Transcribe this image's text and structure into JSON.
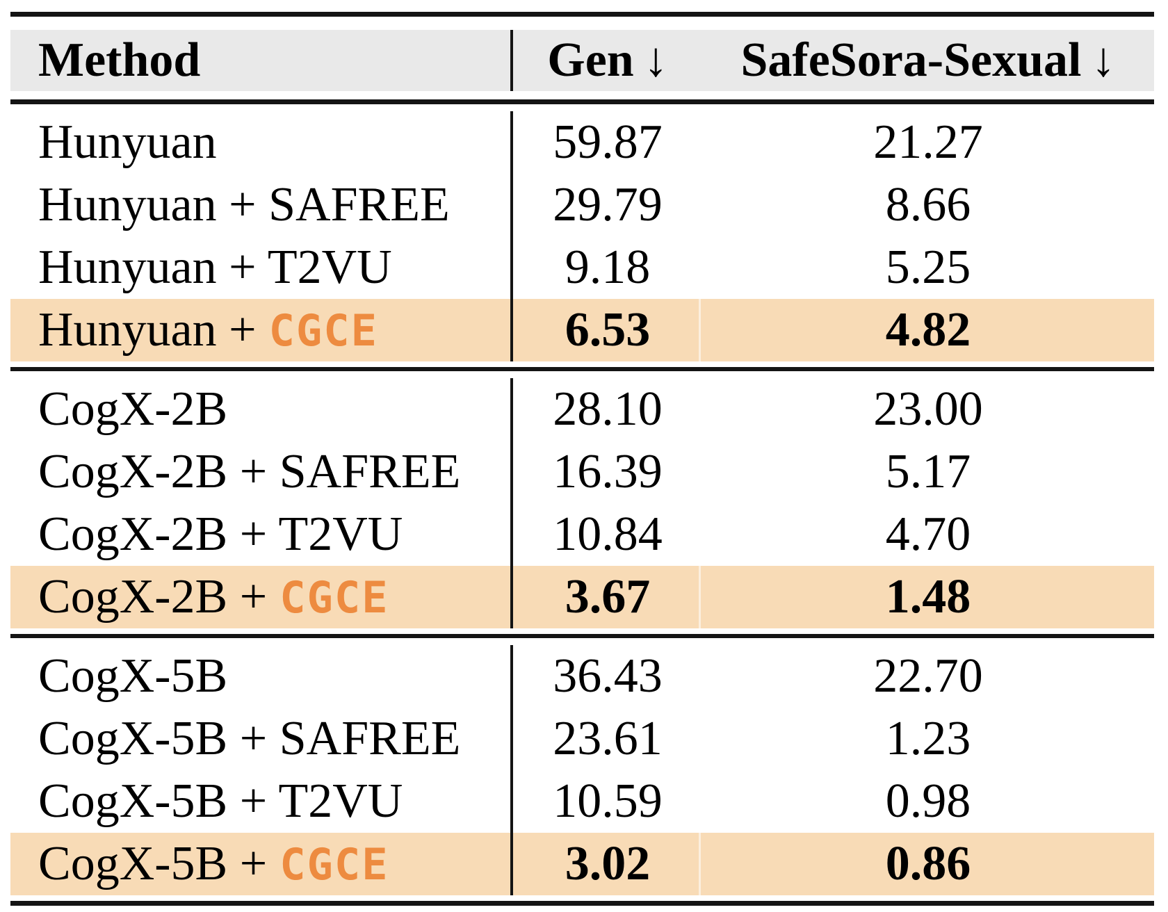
{
  "table": {
    "header": {
      "method": "Method",
      "gen": "Gen",
      "safesora": "SafeSora-Sexual",
      "down_arrow": "↓"
    },
    "colors": {
      "header_bg": "#e9e9e9",
      "highlight_row_bg": "#f8dbb6",
      "cgce_accent": "#ed8b40",
      "rule": "#141414"
    },
    "sections": [
      {
        "name": "Hunyuan",
        "rows": [
          {
            "method": "Hunyuan",
            "cgce": "",
            "gen": "59.87",
            "safesora": "21.27"
          },
          {
            "method": "Hunyuan + SAFREE",
            "cgce": "",
            "gen": "29.79",
            "safesora": "8.66"
          },
          {
            "method": "Hunyuan + T2VU",
            "cgce": "",
            "gen": "9.18",
            "safesora": "5.25"
          },
          {
            "method": "Hunyuan +",
            "cgce": "CGCE",
            "gen": "6.53",
            "safesora": "4.82"
          }
        ]
      },
      {
        "name": "CogX-2B",
        "rows": [
          {
            "method": "CogX-2B",
            "cgce": "",
            "gen": "28.10",
            "safesora": "23.00"
          },
          {
            "method": "CogX-2B + SAFREE",
            "cgce": "",
            "gen": "16.39",
            "safesora": "5.17"
          },
          {
            "method": "CogX-2B + T2VU",
            "cgce": "",
            "gen": "10.84",
            "safesora": "4.70"
          },
          {
            "method": "CogX-2B +",
            "cgce": "CGCE",
            "gen": "3.67",
            "safesora": "1.48"
          }
        ]
      },
      {
        "name": "CogX-5B",
        "rows": [
          {
            "method": "CogX-5B",
            "cgce": "",
            "gen": "36.43",
            "safesora": "22.70"
          },
          {
            "method": "CogX-5B + SAFREE",
            "cgce": "",
            "gen": "23.61",
            "safesora": "1.23"
          },
          {
            "method": "CogX-5B + T2VU",
            "cgce": "",
            "gen": "10.59",
            "safesora": "0.98"
          },
          {
            "method": "CogX-5B +",
            "cgce": "CGCE",
            "gen": "3.02",
            "safesora": "0.86"
          }
        ]
      }
    ]
  },
  "chart_data": {
    "type": "table",
    "columns": [
      "Method",
      "Gen ↓",
      "SafeSora-Sexual ↓"
    ],
    "rows": [
      [
        "Hunyuan",
        59.87,
        21.27
      ],
      [
        "Hunyuan + SAFREE",
        29.79,
        8.66
      ],
      [
        "Hunyuan + T2VU",
        9.18,
        5.25
      ],
      [
        "Hunyuan + CGCE",
        6.53,
        4.82
      ],
      [
        "CogX-2B",
        28.1,
        23.0
      ],
      [
        "CogX-2B + SAFREE",
        16.39,
        5.17
      ],
      [
        "CogX-2B + T2VU",
        10.84,
        4.7
      ],
      [
        "CogX-2B + CGCE",
        3.67,
        1.48
      ],
      [
        "CogX-5B",
        36.43,
        22.7
      ],
      [
        "CogX-5B + SAFREE",
        23.61,
        1.23
      ],
      [
        "CogX-5B + T2VU",
        10.59,
        0.98
      ],
      [
        "CogX-5B + CGCE",
        3.02,
        0.86
      ]
    ],
    "highlighted_rows": [
      "Hunyuan + CGCE",
      "CogX-2B + CGCE",
      "CogX-5B + CGCE"
    ]
  }
}
